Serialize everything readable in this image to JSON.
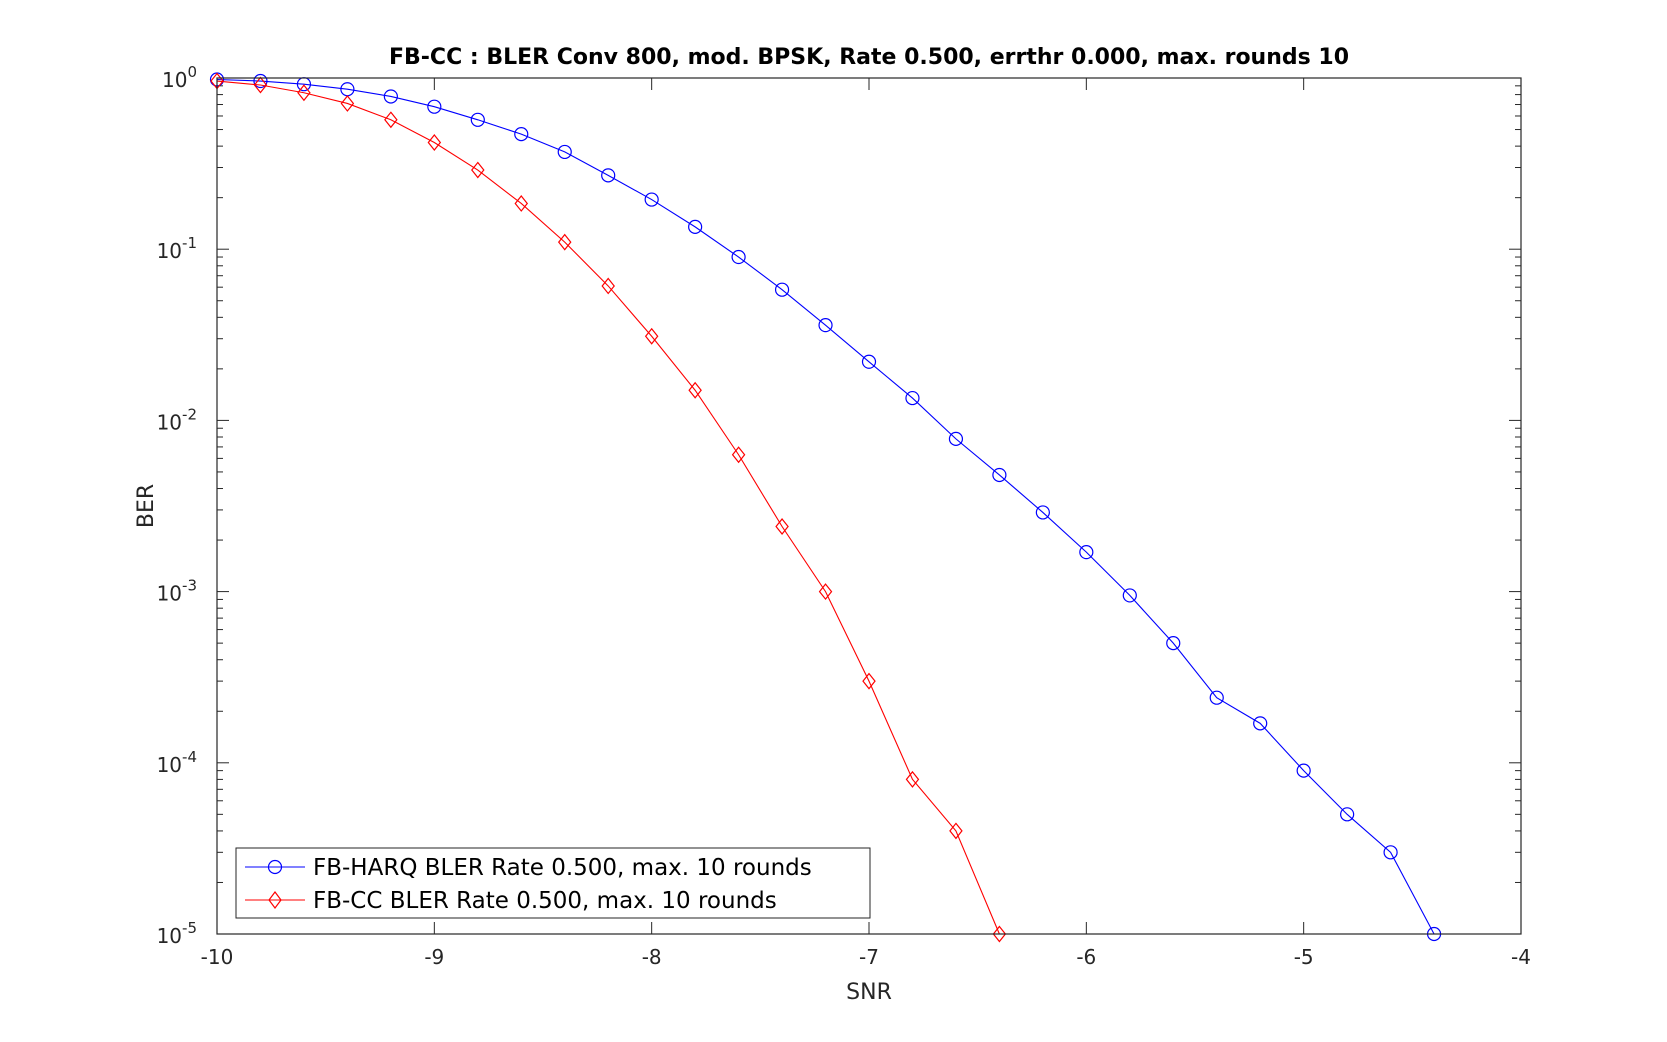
{
  "chart_data": {
    "type": "line",
    "title": "FB-CC : BLER Conv 800, mod. BPSK, Rate 0.500, errthr 0.000, max. rounds 10",
    "xlabel": "SNR",
    "ylabel": "BER",
    "xlim": [
      -10,
      -4
    ],
    "ylim": [
      1e-05,
      1
    ],
    "yscale": "log",
    "grid": false,
    "legend_position": "bottom-left",
    "x_ticks": [
      "-10",
      "-9",
      "-8",
      "-7",
      "-6",
      "-5",
      "-4"
    ],
    "y_ticks": [
      {
        "base": "10",
        "exp": "0"
      },
      {
        "base": "10",
        "exp": "-1"
      },
      {
        "base": "10",
        "exp": "-2"
      },
      {
        "base": "10",
        "exp": "-3"
      },
      {
        "base": "10",
        "exp": "-4"
      },
      {
        "base": "10",
        "exp": "-5"
      }
    ],
    "series": [
      {
        "name": "FB-HARQ BLER Rate 0.500, max. 10 rounds",
        "color": "#0000ff",
        "marker": "circle",
        "x": [
          -10,
          -9.8,
          -9.6,
          -9.4,
          -9.2,
          -9.0,
          -8.8,
          -8.6,
          -8.4,
          -8.2,
          -8.0,
          -7.8,
          -7.6,
          -7.4,
          -7.2,
          -7.0,
          -6.8,
          -6.6,
          -6.4,
          -6.2,
          -6.0,
          -5.8,
          -5.6,
          -5.4,
          -5.2,
          -5.0,
          -4.8,
          -4.6,
          -4.4
        ],
        "y": [
          0.98,
          0.96,
          0.92,
          0.86,
          0.78,
          0.68,
          0.57,
          0.47,
          0.37,
          0.27,
          0.195,
          0.135,
          0.09,
          0.058,
          0.036,
          0.022,
          0.0135,
          0.0078,
          0.0048,
          0.0029,
          0.0017,
          0.00095,
          0.0005,
          0.00024,
          0.00017,
          9e-05,
          5e-05,
          3e-05,
          1e-05
        ]
      },
      {
        "name": "FB-CC BLER Rate 0.500, max. 10 rounds",
        "color": "#ff0000",
        "marker": "diamond",
        "x": [
          -10,
          -9.8,
          -9.6,
          -9.4,
          -9.2,
          -9.0,
          -8.8,
          -8.6,
          -8.4,
          -8.2,
          -8.0,
          -7.8,
          -7.6,
          -7.4,
          -7.2,
          -7.0,
          -6.8,
          -6.6,
          -6.4
        ],
        "y": [
          0.96,
          0.91,
          0.82,
          0.71,
          0.57,
          0.42,
          0.29,
          0.185,
          0.11,
          0.061,
          0.031,
          0.015,
          0.0063,
          0.0024,
          0.001,
          0.0003,
          8e-05,
          4e-05,
          1e-05
        ]
      }
    ]
  }
}
